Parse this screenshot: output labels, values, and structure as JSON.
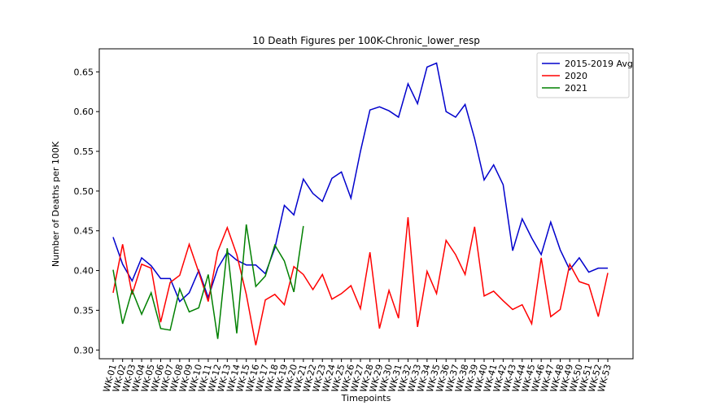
{
  "chart_data": {
    "type": "line",
    "title": "10 Death Figures per 100K-Chronic_lower_resp",
    "x_label": "Timepoints",
    "y_label": "Number of Deaths per 100K",
    "categories": [
      "WK-01",
      "WK-02",
      "WK-03",
      "WK-04",
      "WK-05",
      "WK-06",
      "WK-07",
      "WK-08",
      "WK-09",
      "WK-10",
      "WK-11",
      "WK-12",
      "WK-13",
      "WK-14",
      "WK-15",
      "WK-16",
      "WK-17",
      "WK-18",
      "WK-19",
      "WK-20",
      "WK-21",
      "WK-22",
      "WK-23",
      "WK-24",
      "WK-25",
      "WK-26",
      "WK-27",
      "WK-28",
      "WK-29",
      "WK-30",
      "WK-31",
      "WK-32",
      "WK-33",
      "WK-34",
      "WK-35",
      "WK-36",
      "WK-37",
      "WK-38",
      "WK-39",
      "WK-40",
      "WK-41",
      "WK-42",
      "WK-43",
      "WK-44",
      "WK-45",
      "WK-46",
      "WK-47",
      "WK-48",
      "WK-49",
      "WK-50",
      "WK-51",
      "WK-52",
      "WK-53"
    ],
    "series": [
      {
        "name": "2015-2019 Avg",
        "color": "#0000cc",
        "values": [
          0.442,
          0.408,
          0.387,
          0.416,
          0.406,
          0.39,
          0.39,
          0.361,
          0.372,
          0.4,
          0.366,
          0.403,
          0.423,
          0.413,
          0.407,
          0.407,
          0.396,
          0.428,
          0.482,
          0.47,
          0.515,
          0.497,
          0.487,
          0.516,
          0.524,
          0.491,
          0.55,
          0.602,
          0.606,
          0.601,
          0.593,
          0.635,
          0.61,
          0.656,
          0.661,
          0.6,
          0.593,
          0.609,
          0.566,
          0.514,
          0.533,
          0.508,
          0.425,
          0.465,
          0.441,
          0.42,
          0.461,
          0.426,
          0.401,
          0.416,
          0.398,
          0.403,
          0.403
        ]
      },
      {
        "name": "2020",
        "color": "#ff0000",
        "values": [
          0.372,
          0.433,
          0.37,
          0.408,
          0.403,
          0.335,
          0.385,
          0.394,
          0.433,
          0.398,
          0.361,
          0.424,
          0.454,
          0.42,
          0.37,
          0.306,
          0.363,
          0.37,
          0.357,
          0.405,
          0.395,
          0.376,
          0.395,
          0.364,
          0.371,
          0.381,
          0.352,
          0.423,
          0.327,
          0.375,
          0.34,
          0.467,
          0.329,
          0.399,
          0.371,
          0.438,
          0.42,
          0.395,
          0.455,
          0.368,
          0.374,
          0.362,
          0.351,
          0.357,
          0.333,
          0.416,
          0.342,
          0.351,
          0.408,
          0.386,
          0.382,
          0.342,
          0.397
        ]
      },
      {
        "name": "2021",
        "color": "#008000",
        "values": [
          0.401,
          0.333,
          0.375,
          0.345,
          0.372,
          0.327,
          0.325,
          0.377,
          0.348,
          0.353,
          0.395,
          0.314,
          0.428,
          0.321,
          0.458,
          0.38,
          0.393,
          0.432,
          0.412,
          0.373,
          0.456,
          null,
          null,
          null,
          null,
          null,
          null,
          null,
          null,
          null,
          null,
          null,
          null,
          null,
          null,
          null,
          null,
          null,
          null,
          null,
          null,
          null,
          null,
          null,
          null,
          null,
          null,
          null,
          null,
          null,
          null,
          null,
          null
        ]
      }
    ],
    "ylim": [
      0.289,
      0.679
    ],
    "yticks": [
      {
        "value": 0.3,
        "label": "0.30"
      },
      0.35,
      {
        "value": 0.4,
        "label": "0.40"
      },
      0.45,
      {
        "value": 0.5,
        "label": "0.50"
      },
      0.55,
      {
        "value": 0.6,
        "label": "0.60"
      },
      0.65
    ],
    "legend": "upper right"
  }
}
